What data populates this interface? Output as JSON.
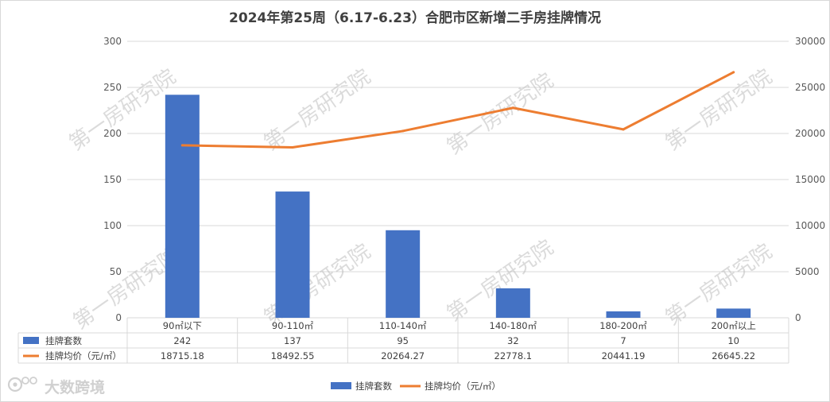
{
  "chart_data": {
    "type": "bar",
    "title": "2024年第25周（6.17-6.23）合肥市区新增二手房挂牌情况",
    "categories": [
      "90㎡以下",
      "90-110㎡",
      "110-140㎡",
      "140-180㎡",
      "180-200㎡",
      "200㎡以上"
    ],
    "series": [
      {
        "name": "挂牌套数",
        "type": "bar",
        "axis": "left",
        "color": "#4472c4",
        "values": [
          242,
          137,
          95,
          32,
          7,
          10
        ],
        "labels": [
          "242",
          "137",
          "95",
          "32",
          "7",
          "10"
        ]
      },
      {
        "name": "挂牌均价（元/㎡）",
        "type": "line",
        "axis": "right",
        "color": "#ed7d31",
        "values": [
          18715.18,
          18492.55,
          20264.27,
          22778.1,
          20441.19,
          26645.22
        ],
        "labels": [
          "18715.18",
          "18492.55",
          "20264.27",
          "22778.1",
          "20441.19",
          "26645.22"
        ]
      }
    ],
    "y_left": {
      "min": 0,
      "max": 300,
      "ticks": [
        "0",
        "50",
        "100",
        "150",
        "200",
        "250",
        "300"
      ]
    },
    "y_right": {
      "min": 0,
      "max": 30000,
      "ticks": [
        "0",
        "5000",
        "10000",
        "15000",
        "20000",
        "25000",
        "30000"
      ]
    },
    "grid": true,
    "legend": "bottom",
    "data_table": true
  },
  "watermark": "第一房研究院",
  "brand": "大数跨境",
  "brand_icon": "brand-logo-icon"
}
